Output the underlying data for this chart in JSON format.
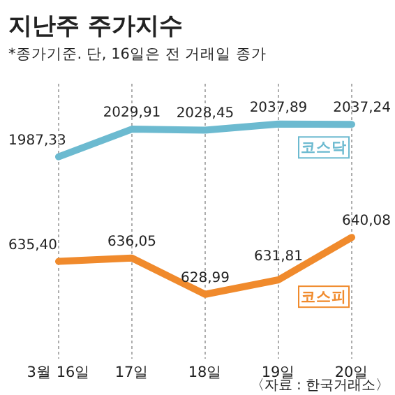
{
  "chart_data": {
    "type": "line",
    "title": "지난주 주가지수",
    "subtitle": "*종가기준. 단, 16일은 전 거래일 종가",
    "categories": [
      "3월 16일",
      "17일",
      "18일",
      "19일",
      "20일"
    ],
    "series": [
      {
        "name": "코스닥",
        "color": "#6cbad0",
        "values": [
          1987.33,
          2029.91,
          2028.45,
          2037.89,
          2037.24
        ],
        "value_labels": [
          "1987,33",
          "2029,91",
          "2028,45",
          "2037,89",
          "2037,24"
        ]
      },
      {
        "name": "코스피",
        "color": "#f08a2c",
        "values": [
          635.4,
          636.05,
          628.99,
          631.81,
          640.08
        ],
        "value_labels": [
          "635,40",
          "636,05",
          "628,99",
          "631,81",
          "640,08"
        ],
        "axis": "y2"
      }
    ],
    "ylim": [
      1680,
      2100
    ],
    "y2lim": [
      617,
      670
    ],
    "tick_labels": "x",
    "grid": "x",
    "marker": "none",
    "line_style": "solid",
    "annotations": [
      "〈자료 : 한국거래소〉"
    ]
  }
}
